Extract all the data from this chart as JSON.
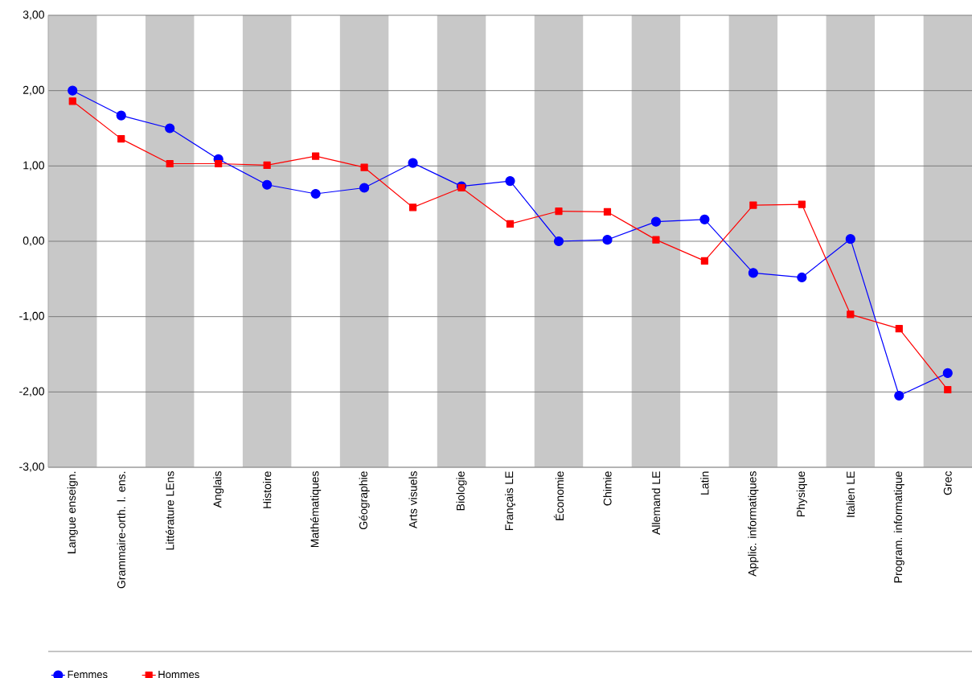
{
  "chart_data": {
    "type": "line",
    "categories": [
      "Langue enseign.",
      "Grammaire-orth. l. ens.",
      "Littérature  LEns",
      "Anglais",
      "Histoire",
      "Mathématiques",
      "Géographie",
      "Arts visuels",
      "Biologie",
      "Français LE",
      "Économie",
      "Chimie",
      "Allemand LE",
      "Latin",
      "Applic. informatiques",
      "Physique",
      "Italien LE",
      "Program. informatique",
      "Grec"
    ],
    "series": [
      {
        "name": "Femmes",
        "color": "#0000ff",
        "marker": "circle",
        "values": [
          2.0,
          1.67,
          1.5,
          1.09,
          0.75,
          0.63,
          0.71,
          1.04,
          0.73,
          0.8,
          0.0,
          0.02,
          0.26,
          0.29,
          -0.42,
          -0.48,
          0.03,
          -2.05,
          -1.75
        ]
      },
      {
        "name": "Hommes",
        "color": "#ff0000",
        "marker": "square",
        "values": [
          1.86,
          1.36,
          1.03,
          1.03,
          1.01,
          1.13,
          0.98,
          0.45,
          0.71,
          0.23,
          0.4,
          0.39,
          0.02,
          -0.26,
          0.48,
          0.49,
          -0.97,
          -1.16,
          -1.97
        ]
      }
    ],
    "ylim": [
      -3,
      3
    ],
    "yticks": [
      {
        "value": -3,
        "label": "-3,00"
      },
      {
        "value": -2,
        "label": "-2,00"
      },
      {
        "value": -1,
        "label": "-1,00"
      },
      {
        "value": 0,
        "label": "0,00"
      },
      {
        "value": 1,
        "label": "1,00"
      },
      {
        "value": 2,
        "label": "2,00"
      },
      {
        "value": 3,
        "label": "3,00"
      }
    ],
    "grid": "y",
    "legend": "bottom left",
    "bands": [
      {
        "axis": "x",
        "from": "Langue enseign.",
        "to": "Langue enseign.",
        "color": "#c8c8c8"
      },
      {
        "axis": "x",
        "from": "Littérature  LEns",
        "to": "Littérature  LEns",
        "color": "#c8c8c8"
      },
      {
        "axis": "x",
        "from": "Histoire",
        "to": "Histoire",
        "color": "#c8c8c8"
      },
      {
        "axis": "x",
        "from": "Géographie",
        "to": "Géographie",
        "color": "#c8c8c8"
      },
      {
        "axis": "x",
        "from": "Biologie",
        "to": "Biologie",
        "color": "#c8c8c8"
      },
      {
        "axis": "x",
        "from": "Économie",
        "to": "Économie",
        "color": "#c8c8c8"
      },
      {
        "axis": "x",
        "from": "Allemand LE",
        "to": "Allemand LE",
        "color": "#c8c8c8"
      },
      {
        "axis": "x",
        "from": "Applic. informatiques",
        "to": "Applic. informatiques",
        "color": "#c8c8c8"
      },
      {
        "axis": "x",
        "from": "Italien LE",
        "to": "Italien LE",
        "color": "#c8c8c8"
      },
      {
        "axis": "x",
        "from": "Grec",
        "to": "Grec",
        "color": "#c8c8c8"
      }
    ]
  }
}
